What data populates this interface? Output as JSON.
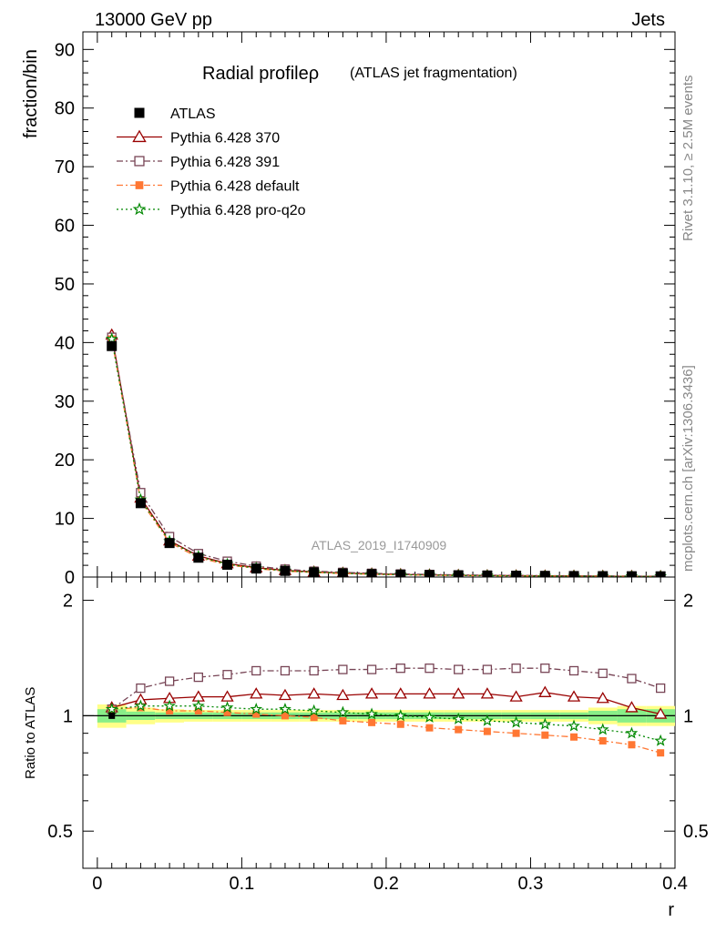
{
  "header": {
    "energy_label": "13000 GeV pp",
    "category_label": "Jets"
  },
  "side_labels": {
    "rivet": "Rivet 3.1.10, ≥ 2.5M events",
    "mcplots": "mcplots.cern.ch [arXiv:1306.3436]"
  },
  "watermark": "ATLAS_2019_I1740909",
  "colors": {
    "ATLAS": "#000000",
    "Pythia 6.428 370": "#990000",
    "Pythia 6.428 391": "#774455",
    "Pythia 6.428 default": "#ff7733",
    "Pythia 6.428 pro-q2o": "#008800",
    "band_inner": "#88ee88",
    "band_outer": "#ffff88"
  },
  "chart_data": [
    {
      "type": "line",
      "title": "Radial profileρ",
      "subtitle": "(ATLAS jet fragmentation)",
      "xlabel": "r",
      "ylabel": "fraction/bin",
      "xlim": [
        -0.01,
        0.4
      ],
      "ylim": [
        0,
        93
      ],
      "yticks": [
        "0",
        "10",
        "20",
        "30",
        "40",
        "50",
        "60",
        "70",
        "80",
        "90"
      ],
      "grid": false,
      "legend_position": "top-left",
      "x": [
        0.01,
        0.03,
        0.05,
        0.07,
        0.09,
        0.11,
        0.13,
        0.15,
        0.17,
        0.19,
        0.21,
        0.23,
        0.25,
        0.27,
        0.29,
        0.31,
        0.33,
        0.35,
        0.37,
        0.39
      ],
      "series": [
        {
          "name": "ATLAS",
          "marker": "filled-square",
          "values": [
            39.4,
            12.6,
            5.8,
            3.3,
            2.1,
            1.45,
            1.05,
            0.8,
            0.62,
            0.5,
            0.41,
            0.34,
            0.29,
            0.25,
            0.22,
            0.19,
            0.17,
            0.15,
            0.13,
            0.12
          ]
        },
        {
          "name": "Pythia 6.428 370",
          "marker": "open-triangle",
          "line": "solid",
          "values": [
            41.3,
            13.5,
            6.2,
            3.6,
            2.3,
            1.6,
            1.15,
            0.88,
            0.68,
            0.55,
            0.45,
            0.37,
            0.32,
            0.27,
            0.24,
            0.21,
            0.19,
            0.16,
            0.14,
            0.12
          ]
        },
        {
          "name": "Pythia 6.428 391",
          "marker": "open-square",
          "line": "dashdot",
          "values": [
            40.9,
            14.4,
            6.9,
            4.0,
            2.7,
            1.85,
            1.35,
            1.0,
            0.8,
            0.64,
            0.52,
            0.44,
            0.37,
            0.32,
            0.28,
            0.24,
            0.21,
            0.19,
            0.16,
            0.14
          ]
        },
        {
          "name": "Pythia 6.428 default",
          "marker": "small-filled-square",
          "line": "dashdot",
          "values": [
            40.6,
            13.0,
            5.9,
            3.3,
            2.1,
            1.45,
            1.0,
            0.78,
            0.6,
            0.47,
            0.38,
            0.31,
            0.26,
            0.22,
            0.19,
            0.16,
            0.14,
            0.12,
            0.1,
            0.09
          ]
        },
        {
          "name": "Pythia 6.428 pro-q2o",
          "marker": "open-star",
          "line": "dotted",
          "values": [
            40.6,
            13.2,
            6.1,
            3.5,
            2.2,
            1.5,
            1.08,
            0.82,
            0.63,
            0.5,
            0.4,
            0.33,
            0.27,
            0.23,
            0.2,
            0.17,
            0.15,
            0.13,
            0.11,
            0.1
          ]
        }
      ]
    },
    {
      "type": "line",
      "ylabel": "Ratio to ATLAS",
      "xlabel": "r",
      "xlim": [
        -0.01,
        0.4
      ],
      "ylim": [
        0.4,
        2.3
      ],
      "log_y": true,
      "yticks": [
        "0.5",
        "1",
        "2"
      ],
      "xticks": [
        "0",
        "0.1",
        "0.2",
        "0.3",
        "0.4"
      ],
      "x": [
        0.01,
        0.03,
        0.05,
        0.07,
        0.09,
        0.11,
        0.13,
        0.15,
        0.17,
        0.19,
        0.21,
        0.23,
        0.25,
        0.27,
        0.29,
        0.31,
        0.33,
        0.35,
        0.37,
        0.39
      ],
      "uncertainty_band": {
        "inner": [
          0.04,
          0.025,
          0.02,
          0.02,
          0.02,
          0.02,
          0.02,
          0.02,
          0.02,
          0.02,
          0.02,
          0.02,
          0.02,
          0.02,
          0.02,
          0.02,
          0.02,
          0.03,
          0.04,
          0.04
        ],
        "outer": [
          0.07,
          0.05,
          0.04,
          0.035,
          0.035,
          0.035,
          0.035,
          0.035,
          0.035,
          0.035,
          0.035,
          0.035,
          0.035,
          0.035,
          0.035,
          0.035,
          0.035,
          0.05,
          0.06,
          0.06
        ]
      },
      "series": [
        {
          "name": "Pythia 6.428 370",
          "values": [
            1.05,
            1.1,
            1.11,
            1.12,
            1.12,
            1.14,
            1.13,
            1.14,
            1.13,
            1.14,
            1.14,
            1.14,
            1.14,
            1.14,
            1.12,
            1.15,
            1.12,
            1.11,
            1.05,
            1.01
          ]
        },
        {
          "name": "Pythia 6.428 391",
          "values": [
            1.04,
            1.18,
            1.23,
            1.26,
            1.28,
            1.31,
            1.31,
            1.31,
            1.32,
            1.32,
            1.33,
            1.33,
            1.32,
            1.32,
            1.33,
            1.33,
            1.31,
            1.29,
            1.25,
            1.18
          ]
        },
        {
          "name": "Pythia 6.428 default",
          "values": [
            1.04,
            1.05,
            1.03,
            1.03,
            1.02,
            1.01,
            1.0,
            0.99,
            0.97,
            0.96,
            0.95,
            0.93,
            0.92,
            0.91,
            0.9,
            0.89,
            0.88,
            0.86,
            0.84,
            0.8
          ]
        },
        {
          "name": "Pythia 6.428 pro-q2o",
          "values": [
            1.04,
            1.06,
            1.06,
            1.06,
            1.05,
            1.04,
            1.04,
            1.03,
            1.02,
            1.01,
            1.0,
            0.99,
            0.98,
            0.97,
            0.96,
            0.95,
            0.94,
            0.92,
            0.9,
            0.86
          ]
        }
      ]
    }
  ]
}
